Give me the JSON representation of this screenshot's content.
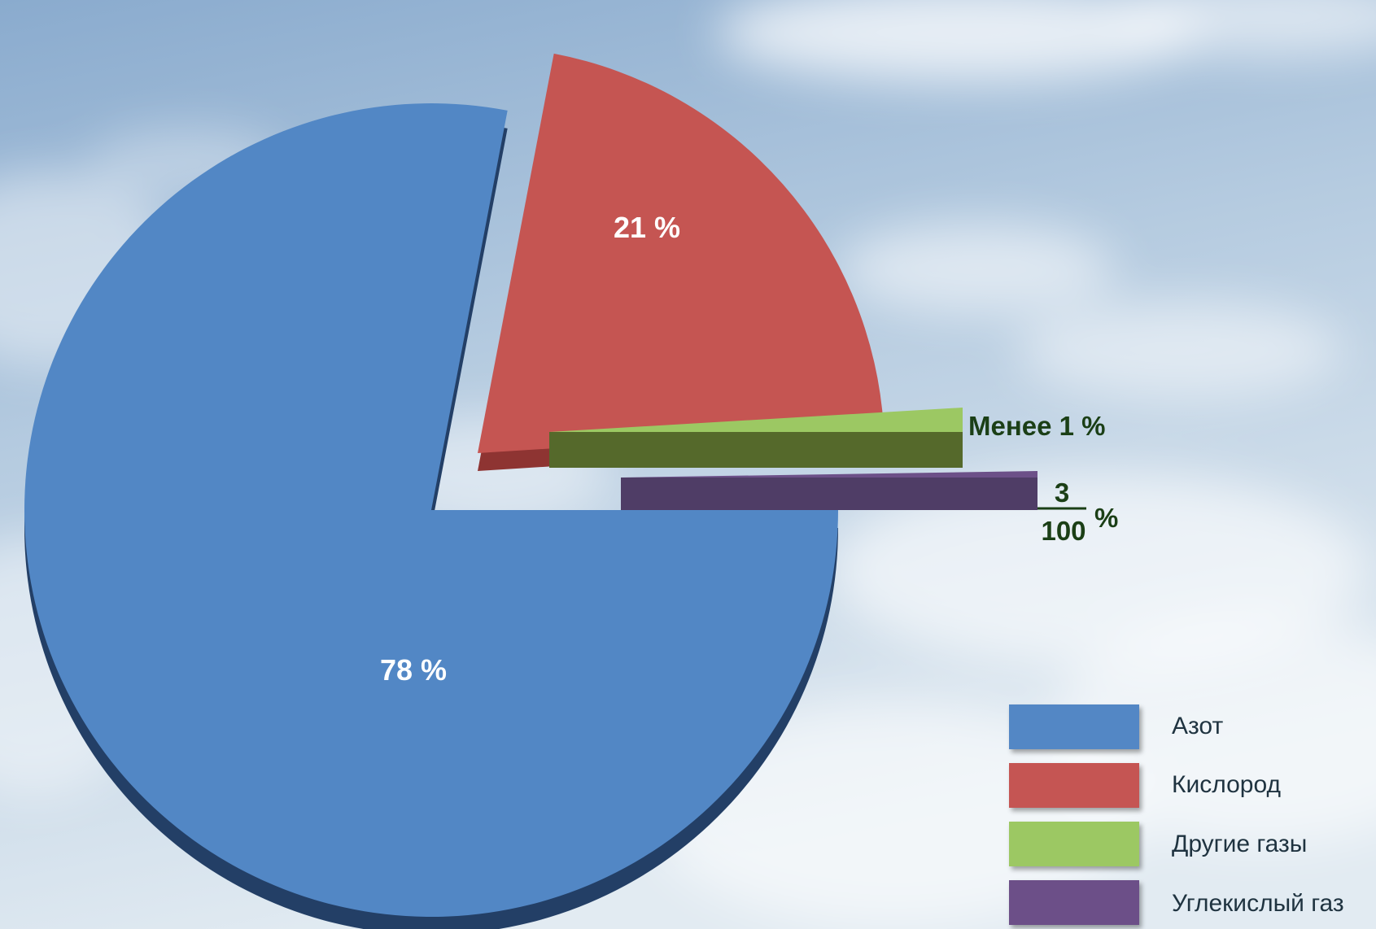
{
  "chart_data": {
    "type": "pie",
    "slices": [
      {
        "name": "Азот",
        "value": 78,
        "label": "78 %",
        "color": "#5287c5"
      },
      {
        "name": "Кислород",
        "value": 21,
        "label": "21 %",
        "color": "#c55552"
      },
      {
        "name": "Другие газы",
        "value": 0.97,
        "label": "Менее 1 %",
        "color": "#9cc863"
      },
      {
        "name": "Углекислый газ",
        "value": 0.03,
        "label_numerator": "3",
        "label_denominator": "100",
        "label_suffix": "%",
        "color": "#5e426f"
      }
    ],
    "legend_position": "bottom-right"
  },
  "colors": {
    "sky_top": "#8fb0d2",
    "sky_bottom": "#dde8f1",
    "side_label": "#1b3f16"
  }
}
